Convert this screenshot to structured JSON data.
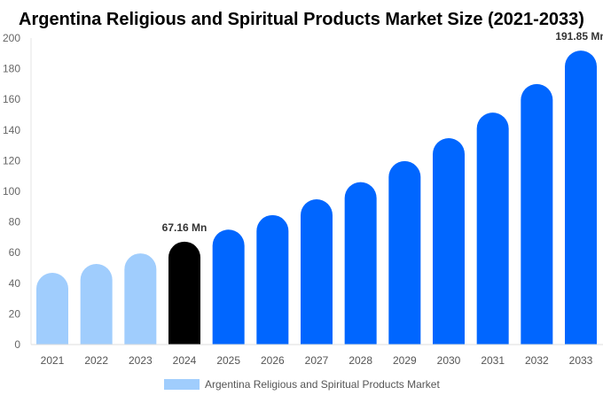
{
  "chart_data": {
    "type": "bar",
    "title": "Argentina Religious and Spiritual Products Market Size (2021-2033)",
    "categories": [
      "2021",
      "2022",
      "2023",
      "2024",
      "2025",
      "2026",
      "2027",
      "2028",
      "2029",
      "2030",
      "2031",
      "2032",
      "2033"
    ],
    "series": [
      {
        "name": "Argentina Religious and Spiritual Products Market",
        "values": [
          46.8,
          52.6,
          59.5,
          67.16,
          75.0,
          84.5,
          94.8,
          106.0,
          119.7,
          134.7,
          151.4,
          170.0,
          191.85
        ]
      }
    ],
    "data_labels": {
      "3": "67.16 Mn",
      "12": "191.85 Mn"
    },
    "ylim": [
      0,
      200
    ],
    "yticks": [
      0,
      20,
      40,
      60,
      80,
      100,
      120,
      140,
      160,
      180,
      200
    ],
    "grid": false,
    "legend": "bottom",
    "colors": {
      "historical": "#a0cdfd",
      "current": "#000000",
      "forecast": "#0066ff"
    }
  }
}
